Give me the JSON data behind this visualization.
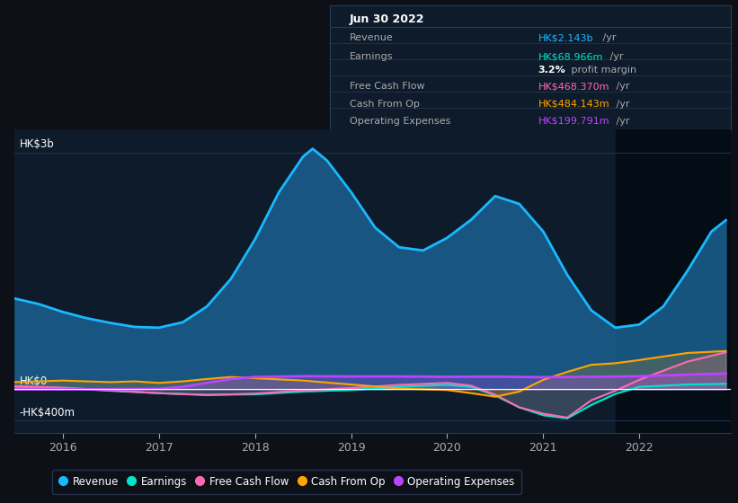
{
  "bg_color": "#0d1117",
  "plot_bg_color": "#0d1b2a",
  "grid_color": "#1e3a5f",
  "title_box_bg": "#0d1b2a",
  "title_box_border": "#2a3a5a",
  "title_box_date": "Jun 30 2022",
  "ylabel_top": "HK$3b",
  "ylabel_zero": "HK$0",
  "ylabel_bottom": "-HK$400m",
  "ylim": [
    -550,
    3300
  ],
  "xlim_start": 2015.5,
  "xlim_end": 2022.95,
  "xtick_years": [
    2016,
    2017,
    2018,
    2019,
    2020,
    2021,
    2022
  ],
  "highlight_x_start": 2021.75,
  "highlight_x_end": 2022.95,
  "legend_items": [
    {
      "label": "Revenue",
      "color": "#1ab8ff"
    },
    {
      "label": "Earnings",
      "color": "#00e5cc"
    },
    {
      "label": "Free Cash Flow",
      "color": "#ff69b4"
    },
    {
      "label": "Cash From Op",
      "color": "#ffa500"
    },
    {
      "label": "Operating Expenses",
      "color": "#bb44ff"
    }
  ],
  "info_rows": [
    {
      "label": "Revenue",
      "value": "HK$2.143b",
      "suffix": " /yr",
      "value_color": "#1ab8ff"
    },
    {
      "label": "Earnings",
      "value": "HK$68.966m",
      "suffix": " /yr",
      "value_color": "#00e5cc"
    },
    {
      "label": "",
      "value": "3.2%",
      "suffix": " profit margin",
      "value_color": "#ffffff",
      "bold": true
    },
    {
      "label": "Free Cash Flow",
      "value": "HK$468.370m",
      "suffix": " /yr",
      "value_color": "#ff69b4"
    },
    {
      "label": "Cash From Op",
      "value": "HK$484.143m",
      "suffix": " /yr",
      "value_color": "#ffa500"
    },
    {
      "label": "Operating Expenses",
      "value": "HK$199.791m",
      "suffix": " /yr",
      "value_color": "#bb44ff"
    }
  ],
  "revenue_x": [
    2015.5,
    2015.75,
    2016.0,
    2016.25,
    2016.5,
    2016.75,
    2017.0,
    2017.25,
    2017.5,
    2017.75,
    2018.0,
    2018.25,
    2018.5,
    2018.6,
    2018.75,
    2019.0,
    2019.25,
    2019.5,
    2019.75,
    2020.0,
    2020.25,
    2020.5,
    2020.75,
    2021.0,
    2021.25,
    2021.5,
    2021.75,
    2022.0,
    2022.25,
    2022.5,
    2022.75,
    2022.9
  ],
  "revenue_y": [
    1150,
    1080,
    980,
    900,
    840,
    790,
    780,
    850,
    1050,
    1400,
    1900,
    2500,
    2950,
    3050,
    2900,
    2500,
    2050,
    1800,
    1760,
    1920,
    2150,
    2450,
    2350,
    2000,
    1450,
    1000,
    780,
    820,
    1050,
    1500,
    2000,
    2143
  ],
  "earnings_x": [
    2015.5,
    2016.0,
    2016.5,
    2017.0,
    2017.5,
    2018.0,
    2018.5,
    2019.0,
    2019.5,
    2020.0,
    2020.25,
    2020.5,
    2020.75,
    2021.0,
    2021.25,
    2021.5,
    2021.75,
    2022.0,
    2022.5,
    2022.9
  ],
  "earnings_y": [
    30,
    15,
    -20,
    -50,
    -70,
    -65,
    -30,
    -10,
    30,
    55,
    30,
    -80,
    -230,
    -330,
    -370,
    -200,
    -60,
    30,
    60,
    69
  ],
  "fcf_x": [
    2015.5,
    2016.0,
    2016.5,
    2017.0,
    2017.5,
    2018.0,
    2018.5,
    2019.0,
    2019.5,
    2020.0,
    2020.25,
    2020.5,
    2020.75,
    2021.0,
    2021.25,
    2021.5,
    2021.75,
    2022.0,
    2022.5,
    2022.9
  ],
  "fcf_y": [
    40,
    20,
    -15,
    -50,
    -75,
    -55,
    -15,
    15,
    55,
    80,
    45,
    -70,
    -230,
    -310,
    -360,
    -140,
    -20,
    120,
    350,
    468
  ],
  "cashop_x": [
    2015.5,
    2016.0,
    2016.25,
    2016.5,
    2016.75,
    2017.0,
    2017.25,
    2017.5,
    2017.75,
    2018.0,
    2018.5,
    2019.0,
    2019.5,
    2020.0,
    2020.25,
    2020.5,
    2020.75,
    2021.0,
    2021.25,
    2021.5,
    2021.75,
    2022.0,
    2022.5,
    2022.9
  ],
  "cashop_y": [
    90,
    110,
    100,
    90,
    100,
    80,
    100,
    130,
    155,
    140,
    110,
    60,
    10,
    -10,
    -50,
    -95,
    -30,
    120,
    220,
    310,
    330,
    370,
    460,
    484
  ],
  "opex_x": [
    2015.5,
    2016.0,
    2016.5,
    2017.0,
    2017.25,
    2017.5,
    2017.75,
    2018.0,
    2018.5,
    2019.0,
    2019.5,
    2020.0,
    2020.5,
    2021.0,
    2021.5,
    2021.75,
    2022.0,
    2022.5,
    2022.9
  ],
  "opex_y": [
    0,
    0,
    0,
    5,
    30,
    80,
    130,
    155,
    165,
    162,
    162,
    158,
    160,
    152,
    158,
    160,
    165,
    185,
    200
  ]
}
